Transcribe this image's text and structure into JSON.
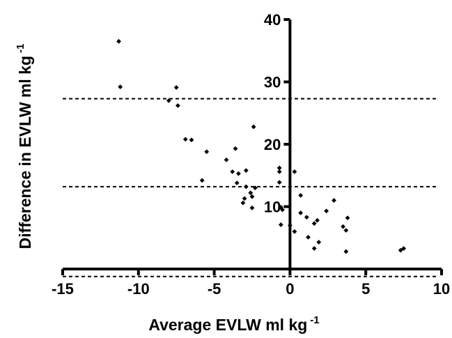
{
  "chart_data": {
    "type": "scatter",
    "xlabel": "Average EVLW ml kg",
    "xlabel_sup": "-1",
    "ylabel": "Difference in EVLW ml kg",
    "ylabel_sup": "-1",
    "xlim": [
      -15,
      10
    ],
    "ylim": [
      0,
      40
    ],
    "xticks": [
      "-15",
      "-10",
      "-5",
      "0",
      "5",
      "10"
    ],
    "yticks": [
      "10",
      "20",
      "30",
      "40"
    ],
    "grid": false,
    "reference_lines": [
      27.3,
      13.2,
      -1.2
    ],
    "points": [
      {
        "x": -11.3,
        "y": 36.5
      },
      {
        "x": -11.2,
        "y": 29.2
      },
      {
        "x": -7.5,
        "y": 29.1
      },
      {
        "x": -8.0,
        "y": 27.0
      },
      {
        "x": -7.4,
        "y": 26.2
      },
      {
        "x": -6.9,
        "y": 20.8
      },
      {
        "x": -6.5,
        "y": 20.7
      },
      {
        "x": -5.5,
        "y": 18.8
      },
      {
        "x": -5.8,
        "y": 14.2
      },
      {
        "x": -4.2,
        "y": 17.5
      },
      {
        "x": -3.6,
        "y": 19.3
      },
      {
        "x": -2.4,
        "y": 22.8
      },
      {
        "x": -3.8,
        "y": 15.6
      },
      {
        "x": -3.4,
        "y": 15.3
      },
      {
        "x": -2.9,
        "y": 15.8
      },
      {
        "x": -3.5,
        "y": 13.8
      },
      {
        "x": -2.9,
        "y": 13.2
      },
      {
        "x": -2.6,
        "y": 12.2
      },
      {
        "x": -2.3,
        "y": 13.0
      },
      {
        "x": -2.5,
        "y": 11.6
      },
      {
        "x": -3.0,
        "y": 11.3
      },
      {
        "x": -3.1,
        "y": 10.6
      },
      {
        "x": -2.5,
        "y": 9.8
      },
      {
        "x": -0.7,
        "y": 16.2
      },
      {
        "x": -0.7,
        "y": 15.6
      },
      {
        "x": -0.7,
        "y": 13.9
      },
      {
        "x": -0.6,
        "y": 9.9
      },
      {
        "x": -0.5,
        "y": 9.5
      },
      {
        "x": -0.6,
        "y": 7.1
      },
      {
        "x": 0.3,
        "y": 15.6
      },
      {
        "x": 0.0,
        "y": 7.0
      },
      {
        "x": 0.3,
        "y": 6.0
      },
      {
        "x": 0.7,
        "y": 11.8
      },
      {
        "x": 0.7,
        "y": 9.0
      },
      {
        "x": 1.1,
        "y": 8.3
      },
      {
        "x": 1.2,
        "y": 5.1
      },
      {
        "x": 1.6,
        "y": 7.3
      },
      {
        "x": 1.8,
        "y": 7.8
      },
      {
        "x": 1.9,
        "y": 4.3
      },
      {
        "x": 1.6,
        "y": 3.3
      },
      {
        "x": 2.4,
        "y": 9.3
      },
      {
        "x": 2.9,
        "y": 11.0
      },
      {
        "x": 3.5,
        "y": 6.8
      },
      {
        "x": 3.7,
        "y": 6.2
      },
      {
        "x": 3.8,
        "y": 8.2
      },
      {
        "x": 3.7,
        "y": 2.8
      },
      {
        "x": 7.3,
        "y": 3.0
      },
      {
        "x": 7.5,
        "y": 3.3
      }
    ]
  }
}
